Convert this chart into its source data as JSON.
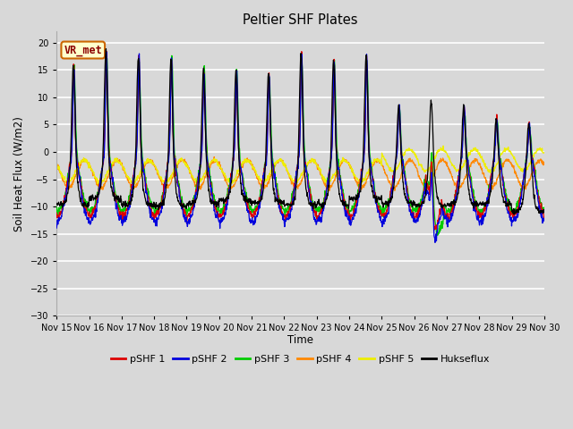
{
  "title": "Peltier SHF Plates",
  "xlabel": "Time",
  "ylabel": "Soil Heat Flux (W/m2)",
  "ylim": [
    -30,
    22
  ],
  "yticks": [
    -30,
    -25,
    -20,
    -15,
    -10,
    -5,
    0,
    5,
    10,
    15,
    20
  ],
  "background_color": "#d8d8d8",
  "plot_bg_color": "#d8d8d8",
  "grid_color": "white",
  "series_colors": {
    "pSHF 1": "#dd0000",
    "pSHF 2": "#0000dd",
    "pSHF 3": "#00cc00",
    "pSHF 4": "#ff8800",
    "pSHF 5": "#eeee00",
    "Hukseflux": "#000000"
  },
  "legend_label": "VR_met",
  "n_days": 15,
  "start_day": 15
}
